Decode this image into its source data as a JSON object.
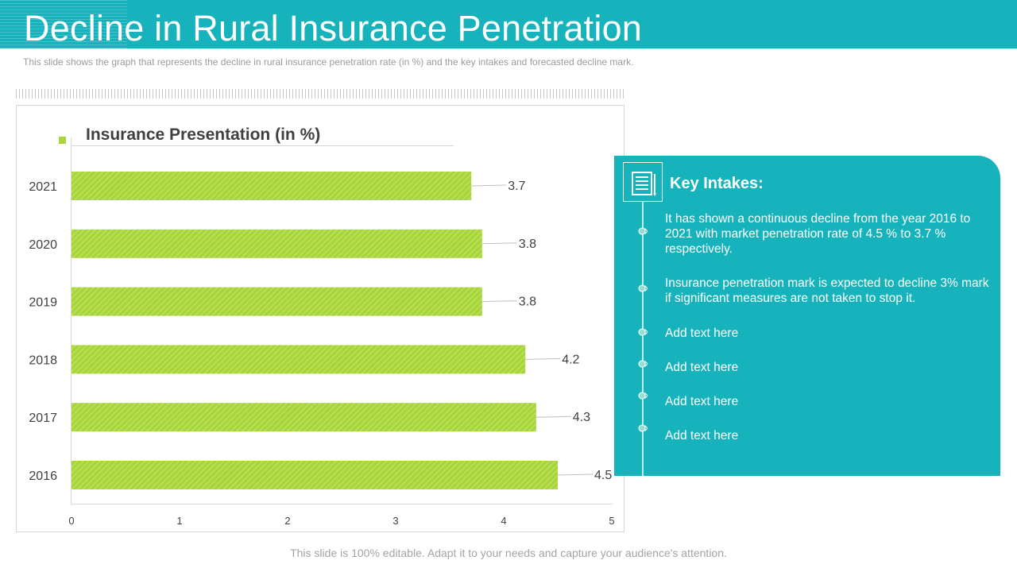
{
  "header": {
    "title": "Decline in Rural Insurance Penetration",
    "subtitle": "This slide shows the graph that represents the decline in rural insurance penetration rate (in %) and the key intakes and forecasted decline mark."
  },
  "chart_data": {
    "type": "bar",
    "orientation": "horizontal",
    "title": "Insurance Presentation (in %)",
    "categories": [
      "2021",
      "2020",
      "2019",
      "2018",
      "2017",
      "2016"
    ],
    "values": [
      3.7,
      3.8,
      3.8,
      4.2,
      4.3,
      4.5
    ],
    "data_labels": [
      "3.7",
      "3.8",
      "3.8",
      "4.2",
      "4.3",
      "4.5"
    ],
    "xlim": [
      0,
      5
    ],
    "x_ticks": [
      "0",
      "1",
      "2",
      "3",
      "4",
      "5"
    ],
    "xlabel": "",
    "ylabel": "",
    "grid": false,
    "bar_color": "#a8d63a"
  },
  "panel": {
    "heading": "Key Intakes:",
    "icon": "document-icon",
    "items": [
      "It has shown a continuous  decline from the year 2016 to 2021 with market penetration rate of 4.5 % to 3.7 % respectively.",
      "Insurance  penetration mark is expected to decline 3% mark if significant measures are not taken to stop it.",
      "Add text here",
      "Add text here",
      "Add text here",
      "Add text here"
    ]
  },
  "footer": {
    "text": "This slide is 100% editable. Adapt it to your needs and capture your audience's attention."
  },
  "colors": {
    "accent": "#17b3bd",
    "bar": "#a8d63a"
  }
}
